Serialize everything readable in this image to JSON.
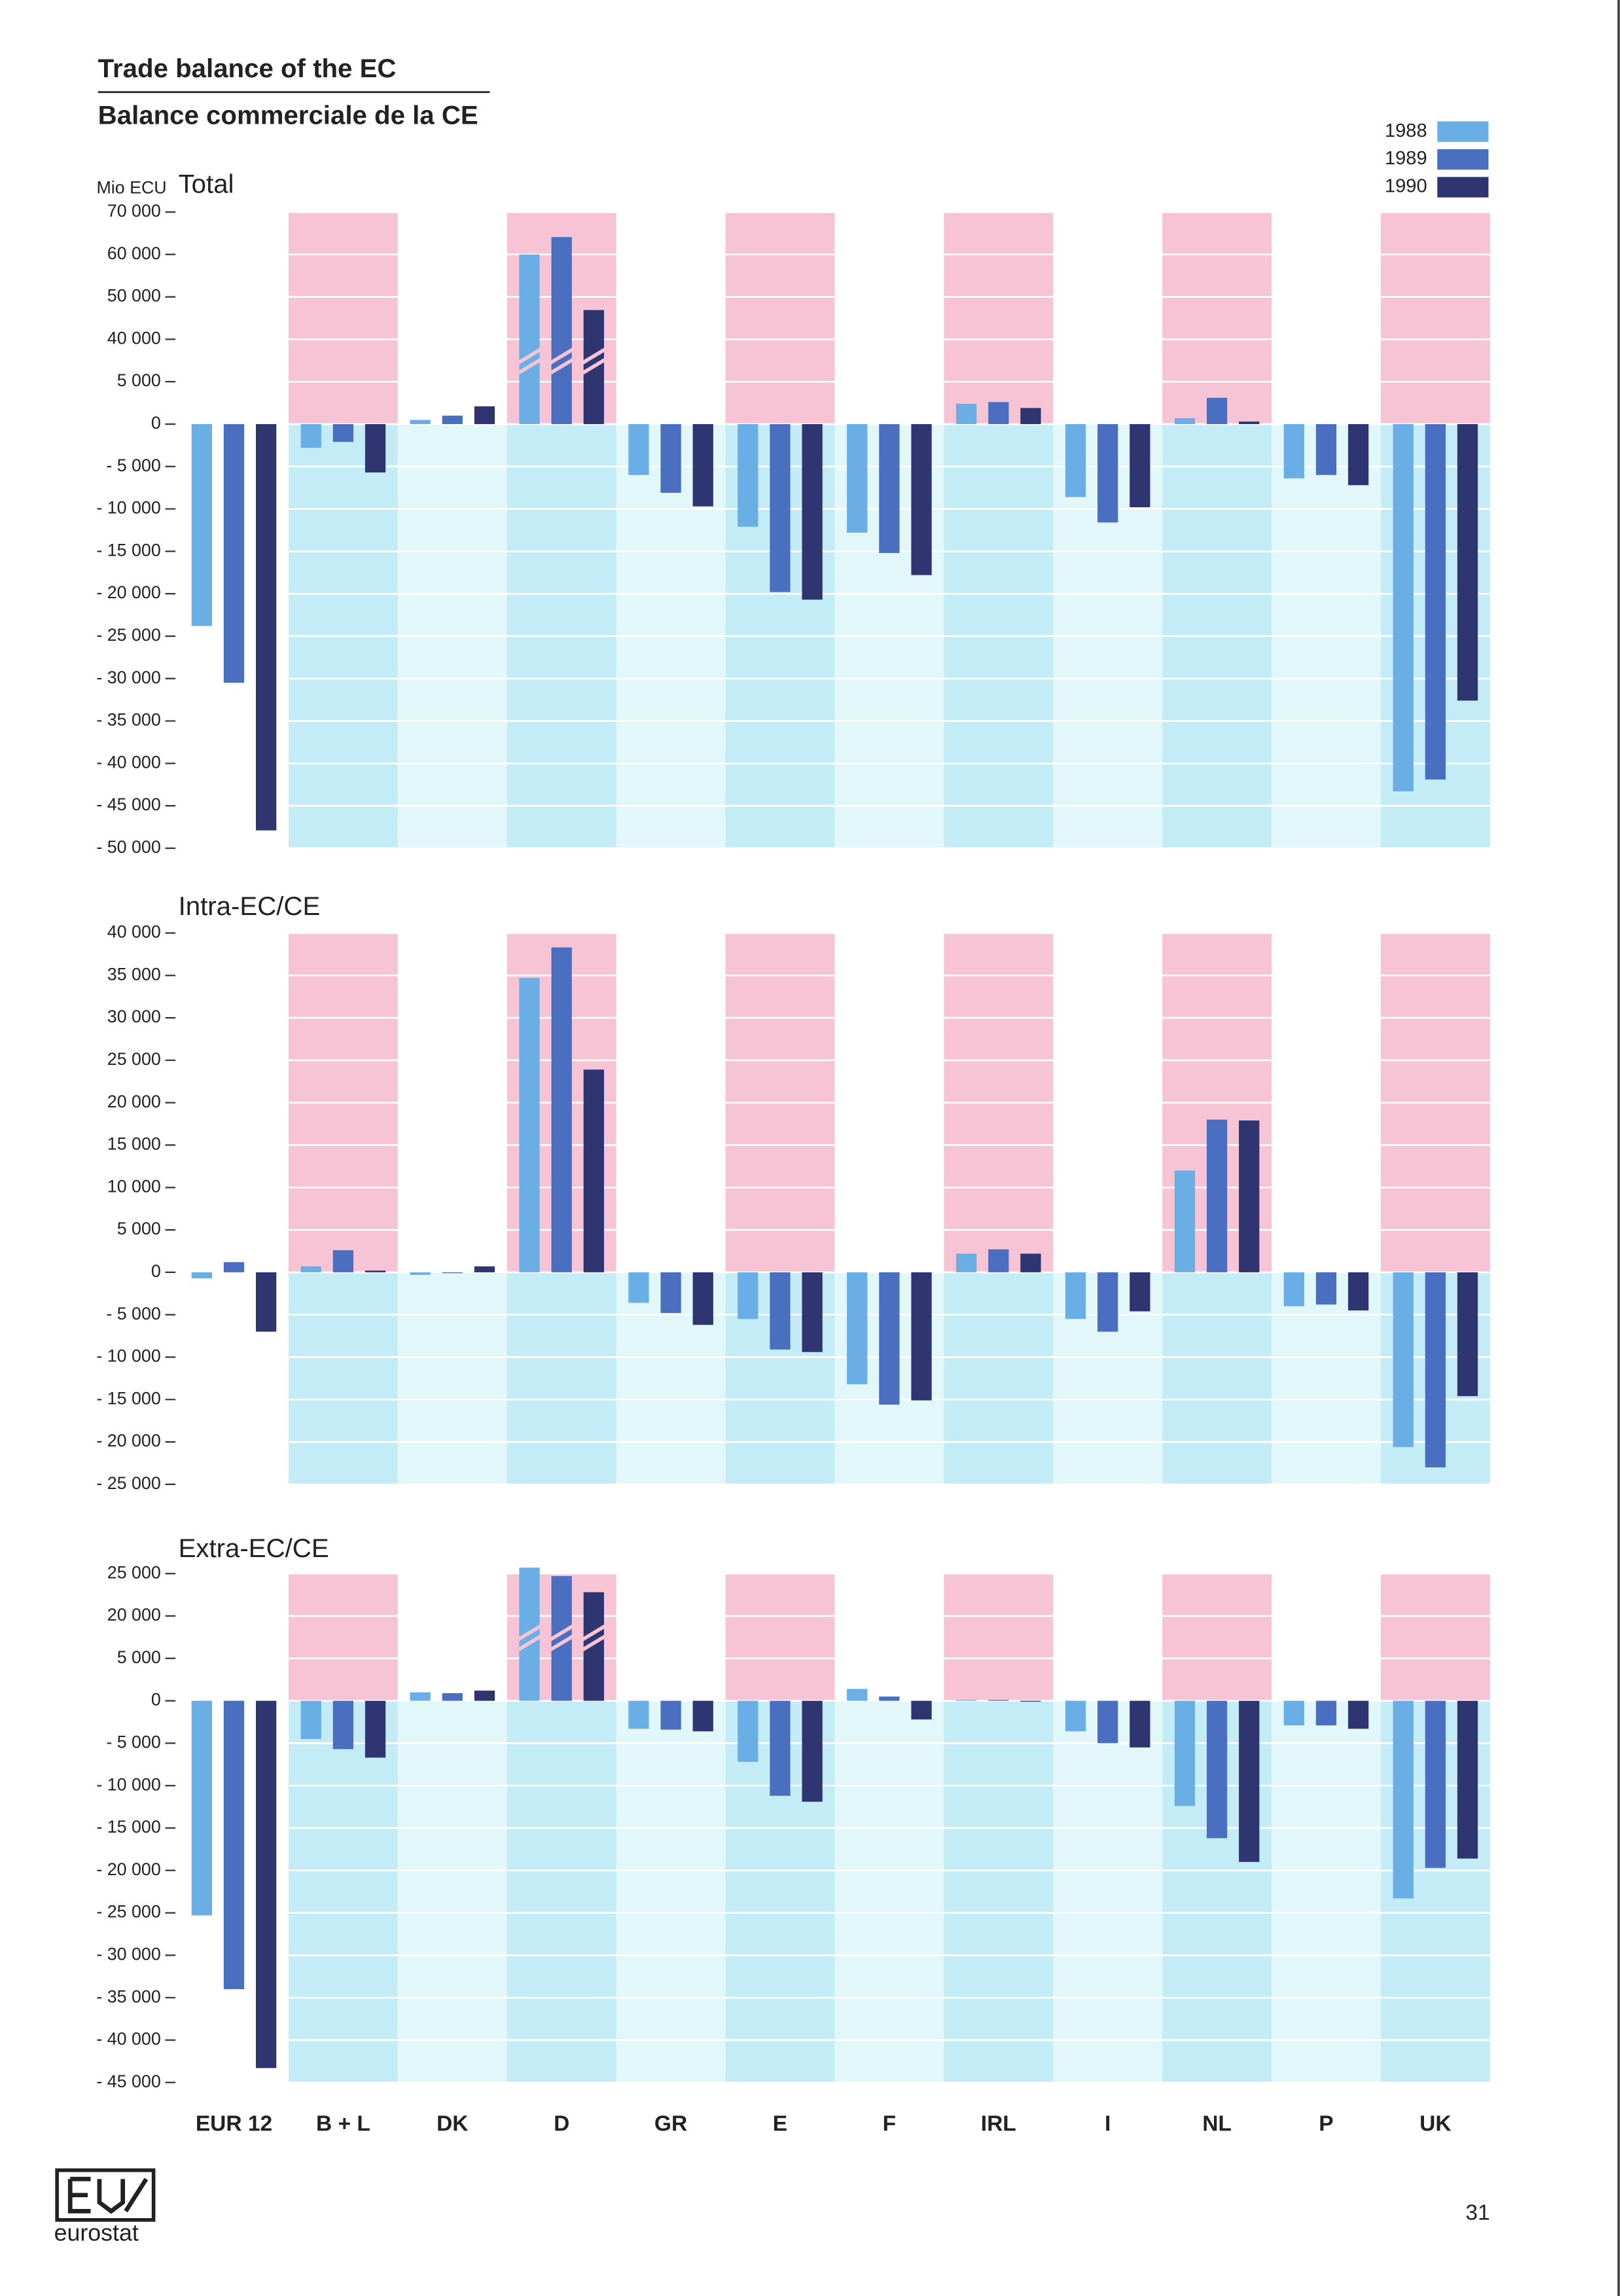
{
  "title": "Trade balance of the EC",
  "subtitle": "Balance commerciale de la CE",
  "logo_text": "eurostat",
  "page_number": "31",
  "chart_data": [
    {
      "type": "bar",
      "title": "Total",
      "ylabel": "Mio ECU",
      "grid": true,
      "legend": "top-right",
      "ylim": [
        -50000,
        70000
      ],
      "yticks": [
        {
          "value": 70000,
          "label": "70 000"
        },
        {
          "value": 60000,
          "label": "60 000"
        },
        {
          "value": 50000,
          "label": "50 000"
        },
        {
          "value": 40000,
          "label": "40 000"
        },
        {
          "value": 5000,
          "label": "5 000"
        },
        0,
        {
          "value": -5000,
          "label": "- 5 000"
        },
        {
          "value": -10000,
          "label": "- 10 000"
        },
        {
          "value": -15000,
          "label": "- 15 000"
        },
        {
          "value": -20000,
          "label": "- 20 000"
        },
        {
          "value": -25000,
          "label": "- 25 000"
        },
        {
          "value": -30000,
          "label": "- 30 000"
        },
        {
          "value": -35000,
          "label": "- 35 000"
        },
        {
          "value": -40000,
          "label": "- 40 000"
        },
        {
          "value": -45000,
          "label": "- 45 000"
        },
        {
          "value": -50000,
          "label": "- 50 000"
        }
      ],
      "series": [
        {
          "name": "1988",
          "color": "#6aaee6",
          "values": [
            -23800,
            -2800,
            500,
            60000,
            -6000,
            -12100,
            -12800,
            2400,
            -8600,
            700,
            -6400,
            -43300
          ]
        },
        {
          "name": "1989",
          "color": "#4a6fc0",
          "values": [
            -30500,
            -2100,
            1000,
            64100,
            -8100,
            -19800,
            -15200,
            2600,
            -11600,
            3100,
            -6000,
            -41900
          ]
        },
        {
          "name": "1990",
          "color": "#2e3570",
          "values": [
            -47900,
            -5700,
            2100,
            46900,
            -9700,
            -20700,
            -17800,
            1900,
            -9800,
            300,
            -7200,
            -32600
          ]
        }
      ]
    },
    {
      "type": "bar",
      "title": "Intra-EC/CE",
      "grid": true,
      "ylim": [
        -25000,
        40000
      ],
      "yticks": [
        {
          "value": 40000,
          "label": "40 000"
        },
        {
          "value": 35000,
          "label": "35 000"
        },
        {
          "value": 30000,
          "label": "30 000"
        },
        {
          "value": 25000,
          "label": "25 000"
        },
        {
          "value": 20000,
          "label": "20 000"
        },
        {
          "value": 15000,
          "label": "15 000"
        },
        {
          "value": 10000,
          "label": "10 000"
        },
        {
          "value": 5000,
          "label": "5 000"
        },
        0,
        {
          "value": -5000,
          "label": "- 5 000"
        },
        {
          "value": -10000,
          "label": "- 10 000"
        },
        {
          "value": -15000,
          "label": "- 15 000"
        },
        {
          "value": -20000,
          "label": "- 20 000"
        },
        {
          "value": -25000,
          "label": "- 25 000"
        }
      ],
      "series": [
        {
          "color": "#6aaee6",
          "values": [
            -700,
            700,
            -300,
            34700,
            -3600,
            -5500,
            -13200,
            2200,
            -5500,
            12000,
            -4000,
            -20600
          ]
        },
        {
          "color": "#4a6fc0",
          "values": [
            1200,
            2600,
            -100,
            38300,
            -4800,
            -9100,
            -15600,
            2700,
            -7000,
            18000,
            -3800,
            -23000
          ]
        },
        {
          "color": "#2e3570",
          "values": [
            -7000,
            200,
            700,
            23900,
            -6200,
            -9400,
            -15100,
            2200,
            -4600,
            17900,
            -4500,
            -14600
          ]
        }
      ]
    },
    {
      "type": "bar",
      "title": "Extra-EC/CE",
      "grid": true,
      "categories": [
        "EUR 12",
        "B + L",
        "DK",
        "D",
        "GR",
        "E",
        "F",
        "IRL",
        "I",
        "NL",
        "P",
        "UK"
      ],
      "ylim": [
        -45000,
        25000
      ],
      "yticks": [
        {
          "value": 25000,
          "label": "25 000"
        },
        {
          "value": 20000,
          "label": "20 000"
        },
        {
          "value": 5000,
          "label": "5 000"
        },
        0,
        {
          "value": -5000,
          "label": "- 5 000"
        },
        {
          "value": -10000,
          "label": "- 10 000"
        },
        {
          "value": -15000,
          "label": "- 15 000"
        },
        {
          "value": -20000,
          "label": "- 20 000"
        },
        {
          "value": -25000,
          "label": "- 25 000"
        },
        {
          "value": -30000,
          "label": "- 30 000"
        },
        {
          "value": -35000,
          "label": "- 35 000"
        },
        {
          "value": -40000,
          "label": "- 40 000"
        },
        {
          "value": -45000,
          "label": "- 45 000"
        }
      ],
      "series": [
        {
          "color": "#6aaee6",
          "values": [
            -25300,
            -4500,
            1000,
            25700,
            -3300,
            -7200,
            1400,
            100,
            -3600,
            -12400,
            -2900,
            -23300
          ]
        },
        {
          "color": "#4a6fc0",
          "values": [
            -34000,
            -5700,
            900,
            24700,
            -3400,
            -11200,
            500,
            100,
            -5000,
            -16200,
            -2900,
            -19700
          ]
        },
        {
          "color": "#2e3570",
          "values": [
            -43300,
            -6700,
            1200,
            22800,
            -3600,
            -11900,
            -2200,
            -100,
            -5500,
            -19000,
            -3300,
            -18600
          ]
        }
      ]
    }
  ]
}
